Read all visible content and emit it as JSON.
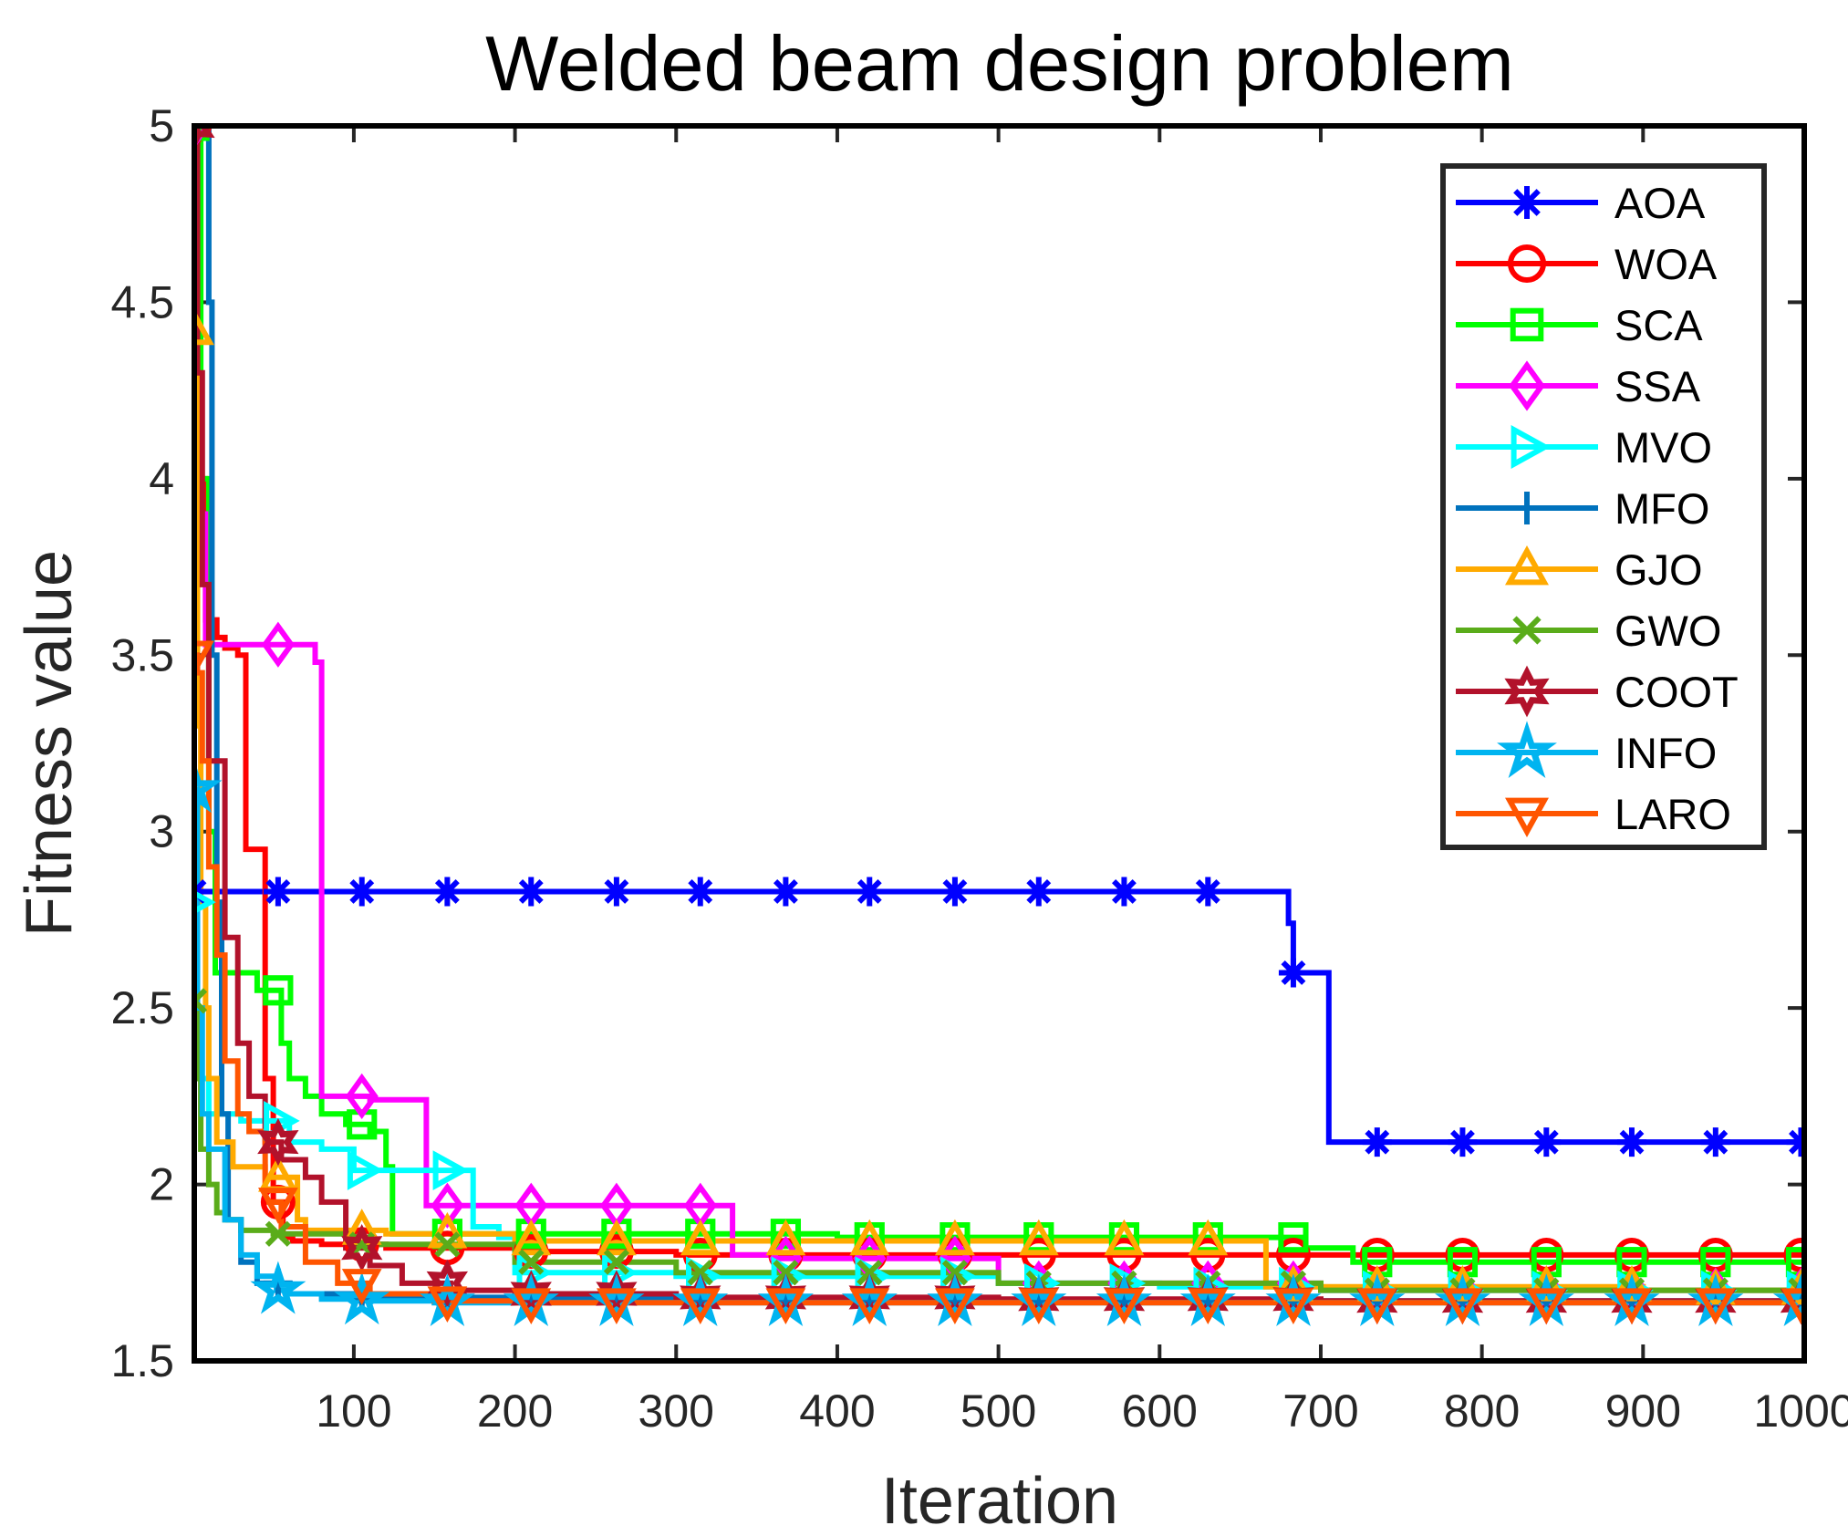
{
  "chart_data": {
    "type": "line",
    "title": "Welded beam design problem",
    "xlabel": "Iteration",
    "ylabel": "Fitness value",
    "xlim": [
      1,
      1000
    ],
    "ylim": [
      1.5,
      5
    ],
    "xticks": [
      100,
      200,
      300,
      400,
      500,
      600,
      700,
      800,
      900,
      1000
    ],
    "xtick_labels": [
      "100",
      "200",
      "300",
      "400",
      "500",
      "600",
      "700",
      "800",
      "900",
      "1000"
    ],
    "yticks": [
      1.5,
      2,
      2.5,
      3,
      3.5,
      4,
      4.5,
      5
    ],
    "ytick_labels": [
      "1.5",
      "2",
      "2.5",
      "3",
      "3.5",
      "4",
      "4.5",
      "5"
    ],
    "grid": false,
    "legend_position": "top-right",
    "marker_iterations": [
      1,
      53,
      105,
      158,
      210,
      263,
      315,
      368,
      420,
      473,
      525,
      578,
      630,
      683,
      735,
      788,
      840,
      893,
      945,
      998
    ],
    "series": [
      {
        "name": "AOA",
        "color": "#0000ff",
        "marker": "asterisk",
        "x": [
          1,
          676,
          680,
          683,
          702,
          705,
          1000
        ],
        "y": [
          2.83,
          2.83,
          2.74,
          2.6,
          2.6,
          2.12,
          2.12
        ]
      },
      {
        "name": "WOA",
        "color": "#ff0000",
        "marker": "circle",
        "x": [
          1,
          3,
          8,
          15,
          20,
          28,
          33,
          40,
          45,
          50,
          56,
          62,
          80,
          120,
          200,
          300,
          400,
          680,
          1000
        ],
        "y": [
          5.0,
          4.0,
          3.6,
          3.55,
          3.52,
          3.5,
          2.95,
          2.95,
          2.3,
          1.95,
          1.85,
          1.84,
          1.83,
          1.82,
          1.81,
          1.8,
          1.8,
          1.8,
          1.8
        ]
      },
      {
        "name": "SCA",
        "color": "#00ff00",
        "marker": "square",
        "x": [
          1,
          5,
          10,
          14,
          25,
          40,
          52,
          55,
          60,
          70,
          80,
          95,
          110,
          120,
          124,
          200,
          400,
          660,
          690,
          720,
          1000
        ],
        "y": [
          5.0,
          4.0,
          3.0,
          2.6,
          2.6,
          2.55,
          2.55,
          2.4,
          2.3,
          2.25,
          2.2,
          2.17,
          2.15,
          2.05,
          1.86,
          1.86,
          1.85,
          1.85,
          1.82,
          1.78,
          1.78
        ]
      },
      {
        "name": "SSA",
        "color": "#ff00ff",
        "marker": "diamond",
        "x": [
          1,
          3,
          5,
          8,
          20,
          60,
          76,
          80,
          110,
          140,
          145,
          200,
          300,
          330,
          335,
          360,
          500,
          700,
          1000
        ],
        "y": [
          5.0,
          4.15,
          3.9,
          3.53,
          3.53,
          3.53,
          3.48,
          2.25,
          2.24,
          2.24,
          1.94,
          1.94,
          1.94,
          1.94,
          1.8,
          1.79,
          1.72,
          1.7,
          1.69
        ]
      },
      {
        "name": "MVO",
        "color": "#00ffff",
        "marker": "triangle-right",
        "x": [
          1,
          3,
          5,
          10,
          30,
          60,
          80,
          100,
          170,
          174,
          190,
          200,
          300,
          500,
          600,
          700,
          1000
        ],
        "y": [
          2.8,
          2.38,
          2.3,
          2.2,
          2.18,
          2.12,
          2.1,
          2.04,
          2.04,
          1.88,
          1.85,
          1.75,
          1.74,
          1.72,
          1.71,
          1.7,
          1.69
        ]
      },
      {
        "name": "MFO",
        "color": "#0072bd",
        "marker": "plus",
        "x": [
          1,
          5,
          10,
          12,
          15,
          18,
          22,
          30,
          40,
          60,
          100,
          200,
          400,
          1000
        ],
        "y": [
          5.0,
          5.0,
          4.5,
          3.5,
          2.8,
          2.2,
          1.9,
          1.78,
          1.72,
          1.69,
          1.68,
          1.675,
          1.67,
          1.665
        ]
      },
      {
        "name": "GJO",
        "color": "#ffaa00",
        "marker": "triangle-up",
        "x": [
          1,
          3,
          5,
          8,
          10,
          15,
          25,
          45,
          65,
          70,
          100,
          120,
          200,
          660,
          666,
          700,
          900,
          1000
        ],
        "y": [
          4.42,
          3.3,
          2.8,
          2.5,
          2.3,
          2.12,
          2.05,
          2.02,
          1.9,
          1.87,
          1.87,
          1.86,
          1.84,
          1.84,
          1.71,
          1.71,
          1.7,
          1.7
        ]
      },
      {
        "name": "GWO",
        "color": "#5aac1a",
        "marker": "x",
        "x": [
          1,
          3,
          5,
          10,
          15,
          20,
          30,
          50,
          100,
          200,
          300,
          500,
          700,
          1000
        ],
        "y": [
          2.52,
          2.3,
          2.1,
          2.0,
          1.92,
          1.9,
          1.87,
          1.86,
          1.83,
          1.78,
          1.75,
          1.72,
          1.7,
          1.68
        ]
      },
      {
        "name": "COOT",
        "color": "#b2122b",
        "marker": "hexagram",
        "x": [
          1,
          3,
          6,
          10,
          20,
          28,
          35,
          45,
          55,
          70,
          80,
          95,
          110,
          130,
          160,
          200,
          300,
          500,
          700,
          1000
        ],
        "y": [
          5.0,
          4.3,
          3.7,
          3.2,
          2.7,
          2.4,
          2.25,
          2.12,
          2.07,
          2.02,
          1.95,
          1.82,
          1.77,
          1.72,
          1.7,
          1.69,
          1.68,
          1.675,
          1.67,
          1.665
        ]
      },
      {
        "name": "INFO",
        "color": "#00b4f0",
        "marker": "pentagram",
        "x": [
          1,
          3,
          6,
          10,
          20,
          30,
          40,
          52,
          60,
          80,
          100,
          150,
          200,
          1000
        ],
        "y": [
          3.12,
          2.5,
          2.2,
          2.1,
          1.9,
          1.8,
          1.74,
          1.7,
          1.69,
          1.675,
          1.67,
          1.665,
          1.665,
          1.66
        ]
      },
      {
        "name": "LARO",
        "color": "#ff5500",
        "marker": "triangle-down",
        "x": [
          1,
          3,
          6,
          10,
          15,
          20,
          28,
          35,
          45,
          55,
          70,
          90,
          110,
          150,
          200,
          1000
        ],
        "y": [
          3.5,
          3.45,
          3.2,
          2.9,
          2.65,
          2.35,
          2.2,
          2.15,
          1.95,
          1.88,
          1.78,
          1.72,
          1.69,
          1.67,
          1.665,
          1.665
        ]
      }
    ]
  }
}
